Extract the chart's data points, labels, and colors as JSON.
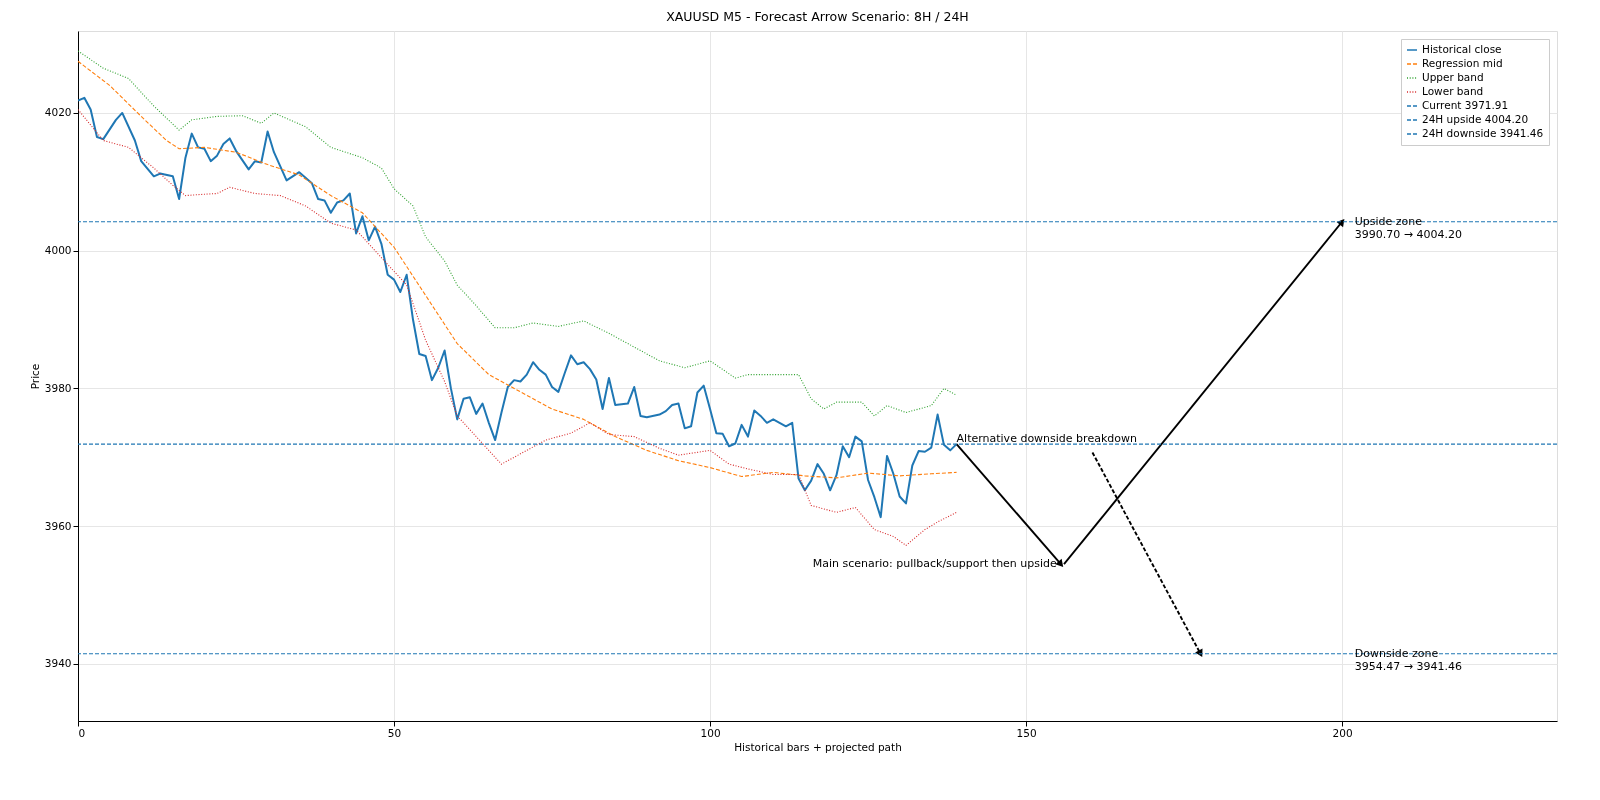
{
  "chart_data": {
    "type": "line",
    "title": "XAUUSD M5 - Forecast Arrow Scenario: 8H / 24H",
    "xlabel": "Historical bars + projected path",
    "ylabel": "Price",
    "xlim": [
      0,
      234
    ],
    "ylim": [
      3931.7,
      4031.9
    ],
    "xticks": [
      0,
      50,
      100,
      150,
      200
    ],
    "yticks": [
      3940,
      3960,
      3980,
      4000,
      4020
    ],
    "grid": true,
    "legend": "top right",
    "series": [
      {
        "name": "Historical close",
        "color": "#1f77b4",
        "line_style": "solid",
        "x": [
          0,
          1,
          2,
          3,
          4,
          6,
          7,
          9,
          10,
          12,
          13,
          15,
          16,
          17,
          18,
          19,
          20,
          21,
          22,
          23,
          24,
          25,
          27,
          28,
          29,
          30,
          31,
          33,
          35,
          37,
          38,
          39,
          40,
          41,
          42,
          43,
          44,
          45,
          46,
          47,
          48,
          49,
          50,
          51,
          52,
          53,
          54,
          55,
          56,
          57,
          58,
          59,
          60,
          61,
          62,
          63,
          64,
          65,
          66,
          67,
          68,
          69,
          70,
          71,
          72,
          73,
          74,
          75,
          76,
          77,
          78,
          79,
          80,
          81,
          82,
          83,
          84,
          85,
          87,
          88,
          89,
          90,
          92,
          93,
          94,
          95,
          96,
          97,
          98,
          99,
          100,
          101,
          102,
          103,
          104,
          105,
          106,
          107,
          108,
          109,
          110,
          111,
          112,
          113,
          114,
          115,
          116,
          117,
          118,
          119,
          120,
          121,
          122,
          123,
          124,
          125,
          126,
          127,
          128,
          129,
          130,
          131,
          132,
          133,
          134,
          135,
          136,
          137,
          138,
          139
        ],
        "values": [
          4021.8,
          4022.2,
          4020.5,
          4016.5,
          4016.2,
          4019,
          4020,
          4016,
          4013,
          4010.8,
          4011.2,
          4010.8,
          4007.5,
          4013.5,
          4017,
          4015,
          4014.8,
          4013,
          4013.8,
          4015.5,
          4016.3,
          4014.5,
          4011.8,
          4013,
          4012.8,
          4017.3,
          4014.3,
          4010.2,
          4011.4,
          4009.8,
          4007.5,
          4007.3,
          4005.5,
          4007,
          4007.3,
          4008.3,
          4002.5,
          4005,
          4001.5,
          4003.5,
          4001,
          3996.5,
          3995.8,
          3994,
          3996.5,
          3990,
          3985,
          3984.7,
          3981.2,
          3983,
          3985.5,
          3980,
          3975.5,
          3978.5,
          3978.7,
          3976.3,
          3977.8,
          3975,
          3972.5,
          3976.5,
          3980.2,
          3981.2,
          3981,
          3982,
          3983.8,
          3982.7,
          3982,
          3980.2,
          3979.5,
          3982.2,
          3984.8,
          3983.5,
          3983.8,
          3982.8,
          3981.3,
          3977,
          3981.5,
          3977.6,
          3977.8,
          3980.2,
          3976,
          3975.8,
          3976.2,
          3976.7,
          3977.6,
          3977.8,
          3974.2,
          3974.5,
          3979.4,
          3980.4,
          3977,
          3973.5,
          3973.4,
          3971.6,
          3972,
          3974.7,
          3973,
          3976.8,
          3976,
          3975,
          3975.5,
          3975,
          3974.5,
          3975,
          3966.9,
          3965.2,
          3966.6,
          3969,
          3967.6,
          3965.2,
          3967.4,
          3971.6,
          3970,
          3973,
          3972.3,
          3966.7,
          3964.2,
          3961.3,
          3970.2,
          3967.6,
          3964.3,
          3963.3,
          3968.8,
          3970.9,
          3970.8,
          3971.4,
          3976.2,
          3971.8,
          3971,
          3971.91
        ]
      },
      {
        "name": "Regression mid",
        "color": "#ff7f0e",
        "line_style": "dashed",
        "x": [
          0,
          5,
          10,
          14,
          16,
          20,
          25,
          30,
          35,
          40,
          45,
          50,
          55,
          60,
          65,
          70,
          75,
          80,
          85,
          90,
          95,
          100,
          105,
          110,
          115,
          120,
          125,
          130,
          135,
          139
        ],
        "values": [
          4027.5,
          4024,
          4019.5,
          4016,
          4014.8,
          4015,
          4014.3,
          4012.5,
          4011,
          4008,
          4005.5,
          4000.5,
          3993.5,
          3986.5,
          3982,
          3979.5,
          3977,
          3975.5,
          3973,
          3971,
          3969.5,
          3968.5,
          3967.2,
          3967.8,
          3967.3,
          3967,
          3967.7,
          3967.3,
          3967.6,
          3967.8
        ]
      },
      {
        "name": "Upper band",
        "color": "#2ca02c",
        "line_style": "dotted",
        "x": [
          0,
          4,
          8,
          12,
          16,
          18,
          22,
          26,
          29,
          31,
          36,
          40,
          45,
          48,
          50,
          53,
          55,
          58,
          60,
          63,
          66,
          69,
          72,
          76,
          80,
          84,
          88,
          92,
          96,
          100,
          104,
          106,
          110,
          114,
          116,
          118,
          120,
          124,
          126,
          128,
          131,
          135,
          137,
          139
        ],
        "values": [
          4029,
          4026.5,
          4025,
          4021,
          4017.5,
          4019,
          4019.5,
          4019.6,
          4018.5,
          4020,
          4018,
          4015,
          4013.5,
          4012,
          4009,
          4006.5,
          4002,
          3998.5,
          3995,
          3992,
          3988.8,
          3988.8,
          3989.5,
          3989,
          3989.8,
          3988,
          3986,
          3984,
          3983,
          3984,
          3981.5,
          3982,
          3982,
          3982,
          3978.5,
          3977,
          3978,
          3978,
          3976,
          3977.5,
          3976.5,
          3977.5,
          3980,
          3979
        ]
      },
      {
        "name": "Lower band",
        "color": "#d62728",
        "line_style": "dotted",
        "x": [
          0,
          4,
          8,
          12,
          15,
          17,
          20,
          22,
          24,
          28,
          32,
          36,
          40,
          44,
          48,
          52,
          55,
          58,
          60,
          64,
          67,
          70,
          74,
          78,
          81,
          84,
          88,
          92,
          95,
          100,
          103,
          106,
          110,
          114,
          116,
          120,
          123,
          126,
          129,
          131,
          134,
          136,
          139
        ],
        "values": [
          4020.5,
          4016,
          4015,
          4012,
          4009.5,
          4008,
          4008.2,
          4008.3,
          4009.2,
          4008.3,
          4008,
          4006.5,
          4004,
          4003,
          3999,
          3995,
          3987,
          3981,
          3976,
          3972,
          3969,
          3970.5,
          3972.5,
          3973.5,
          3975,
          3973.3,
          3973,
          3971.3,
          3970.3,
          3971,
          3969,
          3968.3,
          3967.5,
          3967.5,
          3963,
          3962,
          3962.7,
          3959.5,
          3958.5,
          3957.2,
          3959.5,
          3960.6,
          3962
        ]
      },
      {
        "color": "#000000",
        "line_style": "solid",
        "x": [
          139,
          155.5
        ],
        "values": [
          3971.91,
          3954.47
        ]
      },
      {
        "color": "#000000",
        "line_style": "solid",
        "x": [
          156,
          200
        ],
        "values": [
          3954.47,
          4004.2
        ]
      },
      {
        "color": "#000000",
        "line_style": "dashed",
        "x": [
          160.5,
          177.6
        ],
        "values": [
          3970.7,
          3941.46
        ]
      }
    ],
    "ref_lines": [
      {
        "axis": "y",
        "value": 3971.91,
        "label": "Current 3971.91",
        "color": "#1f77b4",
        "line_style": "dashed"
      },
      {
        "axis": "y",
        "value": 4004.2,
        "label": "24H upside 4004.20",
        "color": "#1f77b4",
        "line_style": "dashed"
      },
      {
        "axis": "y",
        "value": 3941.46,
        "label": "24H downside 3941.46",
        "color": "#1f77b4",
        "line_style": "dashed"
      }
    ],
    "annotations": [
      {
        "text": "Alternative downside breakdown",
        "x": 139,
        "y": 3971.91
      },
      {
        "text": "Main scenario: pullback/support then upside",
        "x": 155.5,
        "y": 3954.47
      },
      {
        "text": "Upside zone\n3990.70 → 4004.20",
        "x": 202,
        "y": 4004.2
      },
      {
        "text": "Downside zone\n3954.47 → 3941.46",
        "x": 202,
        "y": 3941.46
      }
    ]
  }
}
